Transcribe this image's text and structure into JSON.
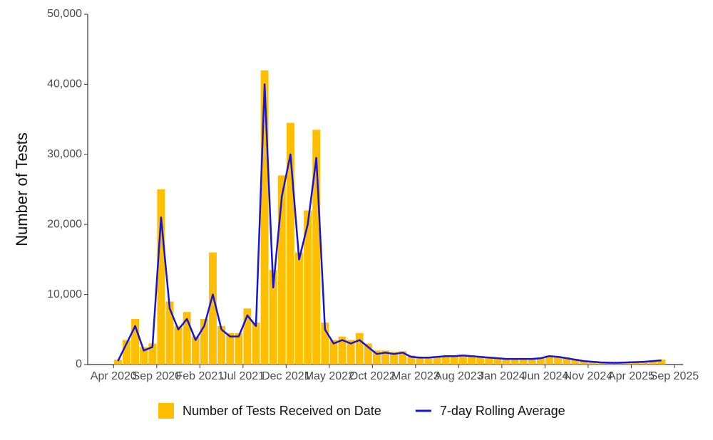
{
  "chart_data": {
    "type": "bar-line",
    "y_label": "Number of Tests",
    "x": [
      "2020-04",
      "2020-05",
      "2020-06",
      "2020-07",
      "2020-08",
      "2020-09",
      "2020-10",
      "2020-11",
      "2020-12",
      "2021-01",
      "2021-02",
      "2021-03",
      "2021-04",
      "2021-05",
      "2021-06",
      "2021-07",
      "2021-08",
      "2021-09",
      "2021-10",
      "2021-11",
      "2021-12",
      "2022-01",
      "2022-02",
      "2022-03",
      "2022-04",
      "2022-05",
      "2022-06",
      "2022-07",
      "2022-08",
      "2022-09",
      "2022-10",
      "2022-11",
      "2022-12",
      "2023-01",
      "2023-02",
      "2023-03",
      "2023-04",
      "2023-05",
      "2023-06",
      "2023-07",
      "2023-08",
      "2023-09",
      "2023-10",
      "2023-11",
      "2023-12",
      "2024-01",
      "2024-02",
      "2024-03",
      "2024-04",
      "2024-05",
      "2024-06",
      "2024-07",
      "2024-08",
      "2024-09",
      "2024-10",
      "2024-11",
      "2024-12",
      "2025-01",
      "2025-02",
      "2025-03",
      "2025-04",
      "2025-05",
      "2025-06",
      "2025-07"
    ],
    "series": [
      {
        "name": "Number of Tests Received on Date",
        "color": "#ffbf00",
        "kind": "bar",
        "values": [
          700,
          3500,
          6500,
          2500,
          3000,
          25000,
          9000,
          5500,
          7500,
          4000,
          6500,
          16000,
          5500,
          4500,
          4500,
          8000,
          6000,
          42000,
          13500,
          27000,
          34500,
          16000,
          22000,
          33500,
          6000,
          3500,
          4000,
          3500,
          4500,
          3000,
          2000,
          2000,
          1800,
          1900,
          1300,
          1100,
          1100,
          1200,
          1300,
          1300,
          1400,
          1300,
          1200,
          1100,
          1000,
          900,
          900,
          900,
          900,
          1000,
          1300,
          1200,
          1000,
          800,
          600,
          500,
          400,
          350,
          350,
          400,
          450,
          500,
          600,
          700
        ]
      },
      {
        "name": "7-day Rolling Average",
        "color": "#1414dc",
        "kind": "line",
        "values": [
          500,
          3000,
          5500,
          2000,
          2500,
          21000,
          8000,
          5000,
          6500,
          3500,
          5500,
          10000,
          5000,
          4000,
          4000,
          7000,
          5500,
          40000,
          11000,
          24000,
          30000,
          15000,
          20000,
          29500,
          5000,
          3000,
          3500,
          3000,
          3500,
          2500,
          1500,
          1700,
          1500,
          1700,
          1100,
          1000,
          1000,
          1100,
          1200,
          1200,
          1300,
          1200,
          1100,
          1000,
          900,
          800,
          800,
          800,
          800,
          900,
          1200,
          1100,
          900,
          700,
          500,
          400,
          300,
          250,
          250,
          300,
          350,
          400,
          500,
          600
        ]
      }
    ],
    "xlim": [
      "2020-01",
      "2025-10"
    ],
    "xticks": [
      {
        "value": "2020-04",
        "label": "Apr 2020"
      },
      {
        "value": "2020-09",
        "label": "Sep 2020"
      },
      {
        "value": "2021-02",
        "label": "Feb 2021"
      },
      {
        "value": "2021-07",
        "label": "Jul 2021"
      },
      {
        "value": "2021-12",
        "label": "Dec 2021"
      },
      {
        "value": "2022-05",
        "label": "May 2022"
      },
      {
        "value": "2022-10",
        "label": "Oct 2022"
      },
      {
        "value": "2023-03",
        "label": "Mar 2023"
      },
      {
        "value": "2023-08",
        "label": "Aug 2023"
      },
      {
        "value": "2024-01",
        "label": "Jan 2024"
      },
      {
        "value": "2024-06",
        "label": "Jun 2024"
      },
      {
        "value": "2024-11",
        "label": "Nov 2024"
      },
      {
        "value": "2025-04",
        "label": "Apr 2025"
      },
      {
        "value": "2025-09",
        "label": "Sep 2025"
      }
    ],
    "ylim": [
      0,
      50000
    ],
    "yticks": [
      0,
      {
        "value": 10000,
        "label": "10,000"
      },
      {
        "value": 20000,
        "label": "20,000"
      },
      {
        "value": 30000,
        "label": "30,000"
      },
      {
        "value": 40000,
        "label": "40,000"
      },
      {
        "value": 50000,
        "label": "50,000"
      }
    ],
    "legend": "bottom"
  }
}
